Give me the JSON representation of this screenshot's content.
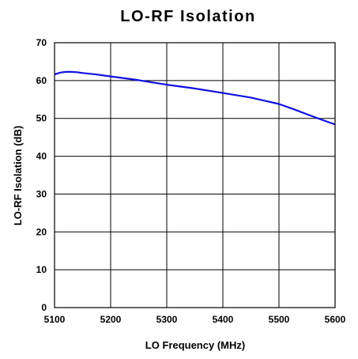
{
  "chart_data": {
    "type": "line",
    "title": "LO-RF Isolation",
    "xlabel": "LO Frequency (MHz)",
    "ylabel": "LO-RF Isolation (dB)",
    "xlim": [
      5100,
      5600
    ],
    "ylim": [
      0,
      70
    ],
    "x_ticks": [
      "5100",
      "5200",
      "5300",
      "5400",
      "5500",
      "5600"
    ],
    "y_ticks": [
      "0",
      "10",
      "20",
      "30",
      "40",
      "50",
      "60",
      "70"
    ],
    "grid": true,
    "series": [
      {
        "color": "#1010e0",
        "x": [
          5100,
          5110,
          5120,
          5130,
          5140,
          5150,
          5175,
          5200,
          5225,
          5250,
          5275,
          5300,
          5350,
          5400,
          5450,
          5500,
          5525,
          5550,
          5575,
          5600
        ],
        "y": [
          61.6,
          62.1,
          62.3,
          62.3,
          62.2,
          62.0,
          61.6,
          61.1,
          60.6,
          60.1,
          59.5,
          58.9,
          57.9,
          56.7,
          55.5,
          53.8,
          52.5,
          51.1,
          49.7,
          48.4
        ]
      }
    ]
  }
}
